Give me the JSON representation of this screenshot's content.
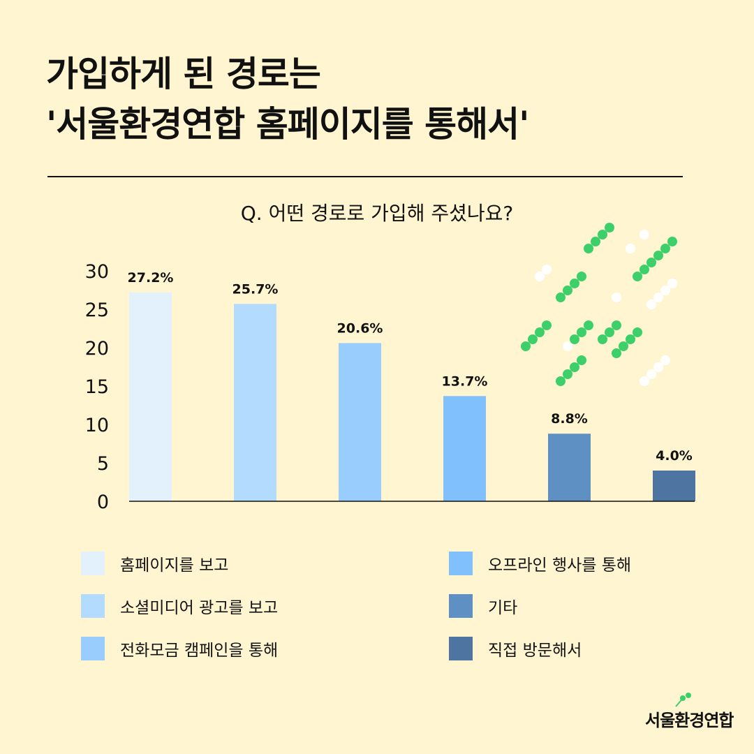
{
  "title": {
    "line1": "가입하게 된 경로는",
    "line2": "'서울환경연합 홈페이지를 통해서'"
  },
  "question": "Q. 어떤 경로로 가입해 주셨나요?",
  "chart_data": {
    "type": "bar",
    "categories": [
      "홈페이지를 보고",
      "소셜미디어 광고를 보고",
      "전화모금 캠페인을 통해",
      "오프라인 행사를 통해",
      "기타",
      "직접 방문해서"
    ],
    "values": [
      27.2,
      25.7,
      20.6,
      13.7,
      8.8,
      4.0
    ],
    "data_labels": [
      "27.2%",
      "25.7%",
      "20.6%",
      "13.7%",
      "8.8%",
      "4.0%"
    ],
    "colors": [
      "#E3F1FD",
      "#B3DBFD",
      "#99CDFD",
      "#80C0FD",
      "#5F90C4",
      "#4E75A2"
    ],
    "yticks": [
      "0",
      "5",
      "10",
      "15",
      "20",
      "25",
      "30"
    ],
    "ylim": [
      0,
      30
    ],
    "grid": false,
    "legend_position": "bottom"
  },
  "logo": {
    "text": "서울환경연합",
    "accent_color": "#3DD06A"
  }
}
